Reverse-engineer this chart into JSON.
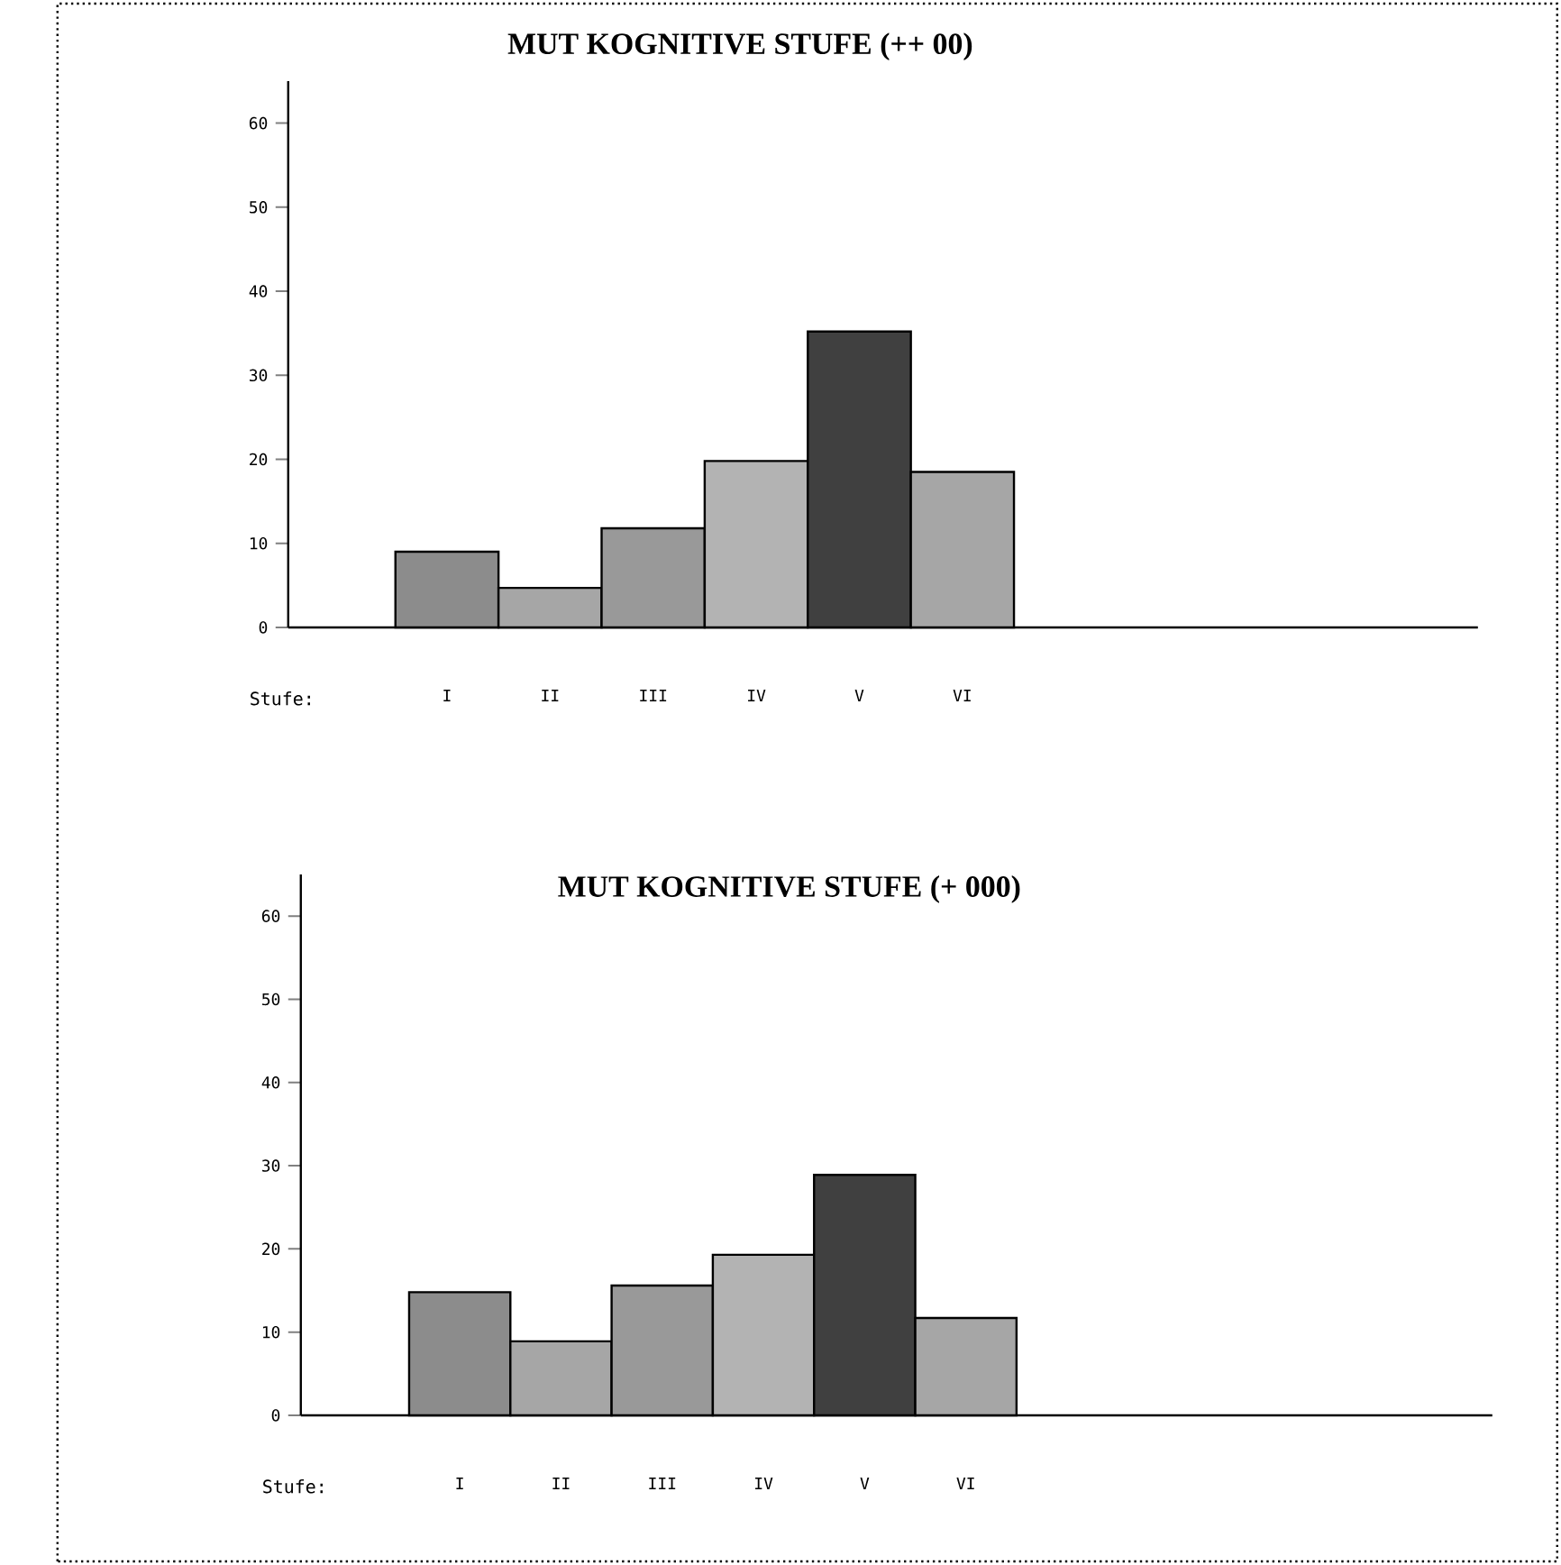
{
  "chart_data": [
    {
      "type": "bar",
      "title": "MUT KOGNITIVE STUFE (++ 00)",
      "xlabel": "Stufe:",
      "categories": [
        "I",
        "II",
        "III",
        "IV",
        "V",
        "VI"
      ],
      "values": [
        9,
        4.7,
        11.8,
        19.8,
        35.2,
        18.5
      ],
      "colors": [
        "#8c8c8c",
        "#a6a6a6",
        "#999999",
        "#b3b3b3",
        "#404040",
        "#a6a6a6"
      ],
      "ylim": [
        0,
        65
      ],
      "yticks": [
        0,
        10,
        20,
        30,
        40,
        50,
        60
      ]
    },
    {
      "type": "bar",
      "title": "MUT KOGNITIVE STUFE (+ 000)",
      "xlabel": "Stufe:",
      "categories": [
        "I",
        "II",
        "III",
        "IV",
        "V",
        "VI"
      ],
      "values": [
        14.8,
        8.9,
        15.6,
        19.3,
        28.9,
        11.7
      ],
      "colors": [
        "#8c8c8c",
        "#a6a6a6",
        "#999999",
        "#b3b3b3",
        "#404040",
        "#a6a6a6"
      ],
      "ylim": [
        0,
        65
      ],
      "yticks": [
        0,
        10,
        20,
        30,
        40,
        50,
        60
      ]
    }
  ]
}
